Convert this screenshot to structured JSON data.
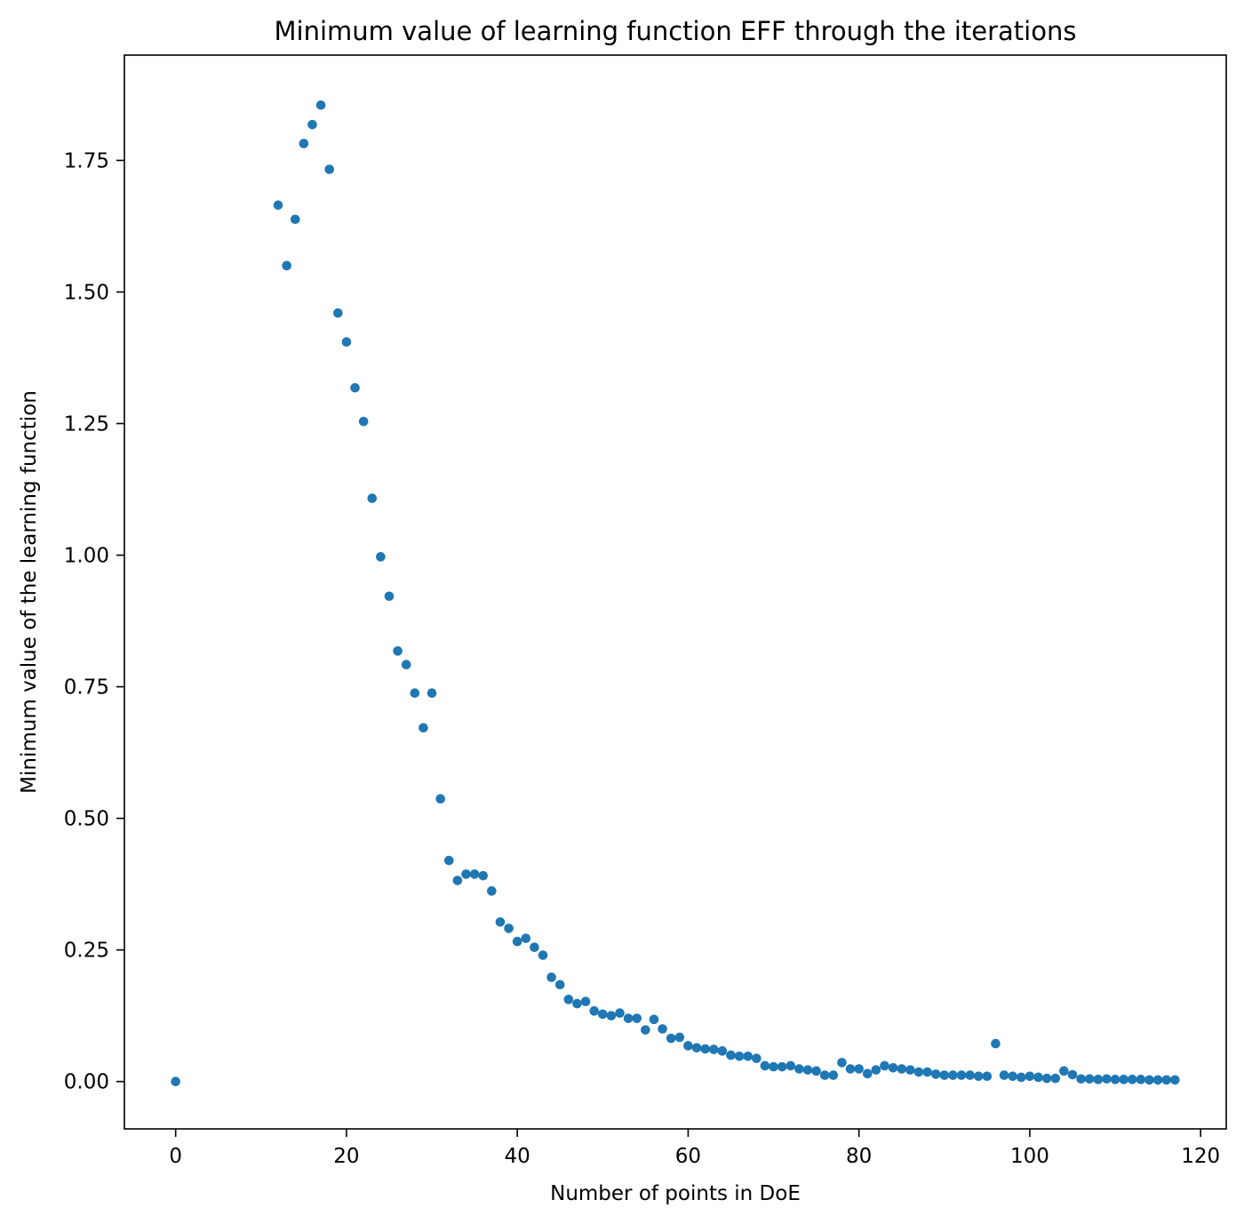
{
  "chart_data": {
    "type": "scatter",
    "title": "Minimum value of learning function EFF through the iterations",
    "xlabel": "Number of points in DoE",
    "ylabel": "Minimum value of the learning function",
    "xlim": [
      -6,
      123
    ],
    "ylim": [
      -0.09,
      1.95
    ],
    "xticks": [
      0,
      20,
      40,
      60,
      80,
      100,
      120
    ],
    "xtick_labels": [
      "0",
      "20",
      "40",
      "60",
      "80",
      "100",
      "120"
    ],
    "yticks": [
      0.0,
      0.25,
      0.5,
      0.75,
      1.0,
      1.25,
      1.5,
      1.75
    ],
    "ytick_labels": [
      "0.00",
      "0.25",
      "0.50",
      "0.75",
      "1.00",
      "1.25",
      "1.50",
      "1.75"
    ],
    "grid": false,
    "marker_color": "#1f77b4",
    "series": [
      {
        "x": [
          0,
          12,
          13,
          14,
          15,
          16,
          17,
          18,
          19,
          20,
          21,
          22,
          23,
          24,
          25,
          26,
          27,
          28,
          29,
          30,
          31,
          32,
          33,
          34,
          35,
          36,
          37,
          38,
          39,
          40,
          41,
          42,
          43,
          44,
          45,
          46,
          47,
          48,
          49,
          50,
          51,
          52,
          53,
          54,
          55,
          56,
          57,
          58,
          59,
          60,
          61,
          62,
          63,
          64,
          65,
          66,
          67,
          68,
          69,
          70,
          71,
          72,
          73,
          74,
          75,
          76,
          77,
          78,
          79,
          80,
          81,
          82,
          83,
          84,
          85,
          86,
          87,
          88,
          89,
          90,
          91,
          92,
          93,
          94,
          95,
          96,
          97,
          98,
          99,
          100,
          101,
          102,
          103,
          104,
          105,
          106,
          107,
          108,
          109,
          110,
          111,
          112,
          113,
          114,
          115,
          116,
          117
        ],
        "y": [
          0.0,
          1.665,
          1.55,
          1.638,
          1.782,
          1.818,
          1.855,
          1.733,
          1.46,
          1.405,
          1.318,
          1.254,
          1.108,
          0.997,
          0.922,
          0.818,
          0.792,
          0.738,
          0.672,
          0.738,
          0.537,
          0.42,
          0.382,
          0.394,
          0.394,
          0.391,
          0.362,
          0.303,
          0.291,
          0.266,
          0.272,
          0.255,
          0.24,
          0.198,
          0.184,
          0.156,
          0.148,
          0.152,
          0.134,
          0.128,
          0.125,
          0.13,
          0.12,
          0.12,
          0.098,
          0.118,
          0.1,
          0.082,
          0.084,
          0.068,
          0.064,
          0.062,
          0.061,
          0.058,
          0.05,
          0.048,
          0.048,
          0.044,
          0.03,
          0.028,
          0.028,
          0.03,
          0.024,
          0.022,
          0.02,
          0.012,
          0.012,
          0.036,
          0.024,
          0.024,
          0.015,
          0.022,
          0.03,
          0.026,
          0.024,
          0.022,
          0.018,
          0.018,
          0.014,
          0.012,
          0.012,
          0.012,
          0.012,
          0.01,
          0.01,
          0.072,
          0.012,
          0.01,
          0.008,
          0.01,
          0.008,
          0.006,
          0.006,
          0.02,
          0.013,
          0.005,
          0.005,
          0.004,
          0.005,
          0.004,
          0.004,
          0.004,
          0.004,
          0.003,
          0.003,
          0.003,
          0.003
        ]
      }
    ]
  }
}
